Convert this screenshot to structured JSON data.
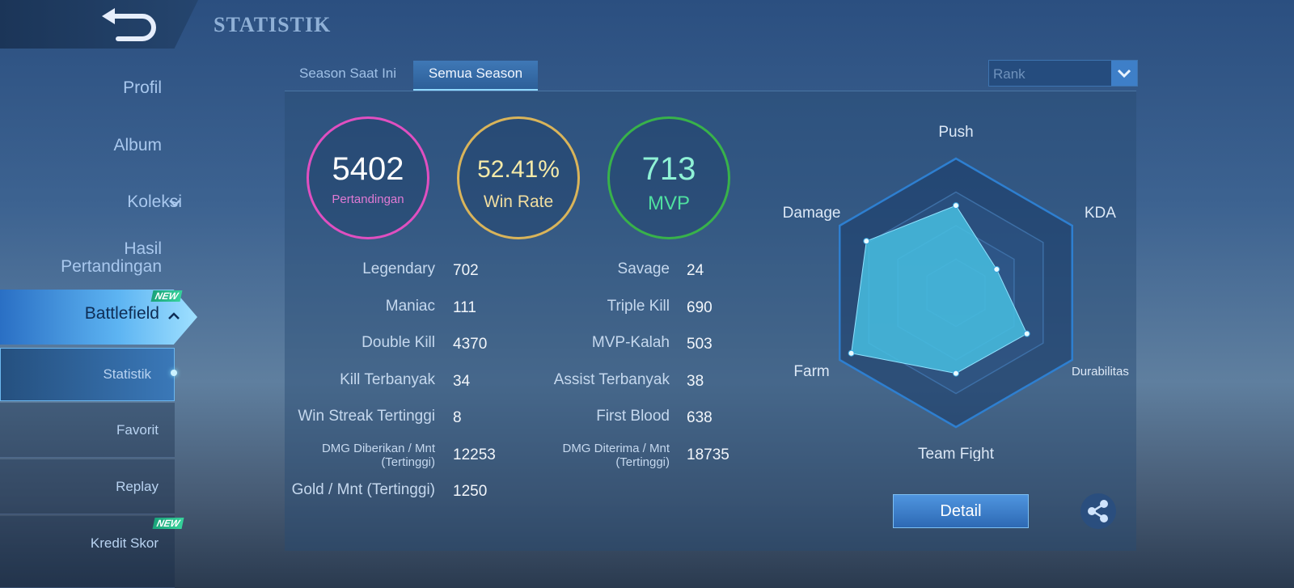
{
  "header": {
    "title": "STATISTIK"
  },
  "sidebar": {
    "items": [
      {
        "label": "Profil"
      },
      {
        "label": "Album"
      },
      {
        "label": "Koleksi"
      },
      {
        "label": "Hasil Pertandingan"
      },
      {
        "label": "Battlefield",
        "badge": "NEW"
      },
      {
        "label": "Statistik"
      },
      {
        "label": "Favorit"
      },
      {
        "label": "Replay"
      },
      {
        "label": "Kredit Skor",
        "badge": "NEW"
      }
    ]
  },
  "tabs": [
    "Season Saat Ini",
    "Semua Season"
  ],
  "filter": {
    "label": "Rank"
  },
  "summary": [
    {
      "value": 5402,
      "label": "Pertandingan"
    },
    {
      "value": "52.41%",
      "label": "Win Rate"
    },
    {
      "value": 713,
      "label": "MVP"
    }
  ],
  "stats": {
    "left": [
      {
        "label": "Legendary",
        "value": 702
      },
      {
        "label": "Maniac",
        "value": 111
      },
      {
        "label": "Double Kill",
        "value": 4370
      },
      {
        "label": "Kill Terbanyak",
        "value": 34
      },
      {
        "label": "Win Streak Tertinggi",
        "value": 8
      },
      {
        "label": "DMG Diberikan / Mnt (Tertinggi)",
        "value": 12253
      },
      {
        "label": "Gold / Mnt (Tertinggi)",
        "value": 1250
      }
    ],
    "right": [
      {
        "label": "Savage",
        "value": 24
      },
      {
        "label": "Triple Kill",
        "value": 690
      },
      {
        "label": "MVP-Kalah",
        "value": 503
      },
      {
        "label": "Assist Terbanyak",
        "value": 38
      },
      {
        "label": "First Blood",
        "value": 638
      },
      {
        "label": "DMG Diterima / Mnt (Tertinggi)",
        "value": 18735
      }
    ]
  },
  "radar": {
    "type": "radar",
    "axes": [
      "Push",
      "KDA",
      "Durabilitas",
      "Team Fight",
      "Farm",
      "Damage"
    ],
    "values": [
      65,
      35,
      61,
      60,
      90,
      77
    ],
    "rlim": [
      0,
      100
    ],
    "rticks": [
      25,
      50,
      75,
      100
    ]
  },
  "buttons": {
    "detail": "Detail"
  }
}
